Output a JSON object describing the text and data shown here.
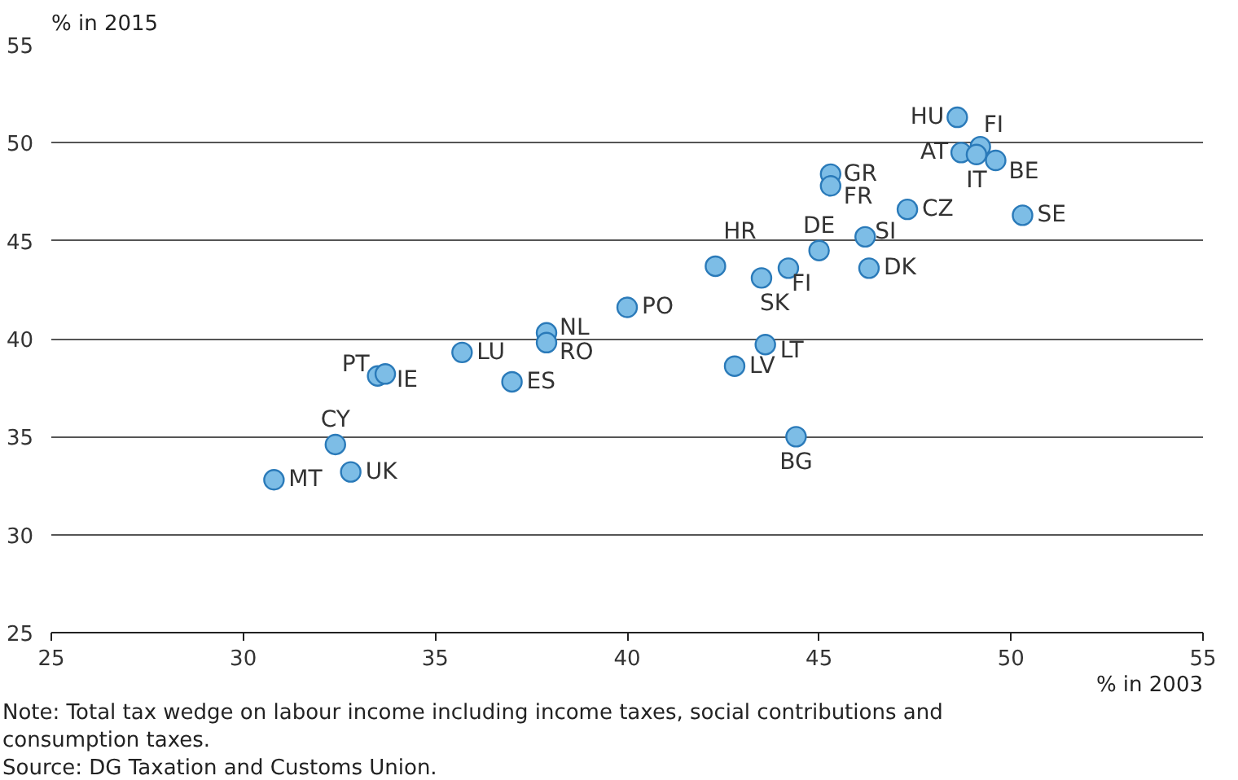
{
  "chart_data": {
    "type": "scatter",
    "xlabel": "% in 2003",
    "ylabel": "% in 2015",
    "x": [
      48.6,
      49.2,
      48.7,
      49.1,
      49.6,
      45.3,
      45.3,
      47.3,
      50.3,
      46.2,
      45.0,
      42.3,
      43.5,
      44.2,
      46.3,
      43.6,
      42.8,
      44.4,
      40.0,
      37.9,
      37.9,
      35.7,
      37.0,
      33.5,
      33.7,
      32.4,
      30.8,
      32.8
    ],
    "series": [
      {
        "color": "#7dbde6",
        "values": [
          51.3,
          49.8,
          49.5,
          49.4,
          49.1,
          48.4,
          47.8,
          46.6,
          46.3,
          45.2,
          44.5,
          43.7,
          43.1,
          43.6,
          43.6,
          39.7,
          38.6,
          35.0,
          41.6,
          40.3,
          39.8,
          39.3,
          37.8,
          38.1,
          38.2,
          34.6,
          32.8,
          33.2
        ]
      }
    ],
    "annotations": [
      {
        "text": "HU",
        "x": 48.6,
        "y": 51.3
      },
      {
        "text": "FI",
        "x": 49.2,
        "y": 49.8
      },
      {
        "text": "AT",
        "x": 48.7,
        "y": 49.5
      },
      {
        "text": "IT",
        "x": 49.1,
        "y": 49.4
      },
      {
        "text": "BE",
        "x": 49.6,
        "y": 49.1
      },
      {
        "text": "GR",
        "x": 45.3,
        "y": 48.4
      },
      {
        "text": "FR",
        "x": 45.3,
        "y": 47.8
      },
      {
        "text": "CZ",
        "x": 47.3,
        "y": 46.6
      },
      {
        "text": "SE",
        "x": 50.3,
        "y": 46.3
      },
      {
        "text": "SI",
        "x": 46.2,
        "y": 45.2
      },
      {
        "text": "DE",
        "x": 45.0,
        "y": 44.5
      },
      {
        "text": "HR",
        "x": 42.3,
        "y": 43.7
      },
      {
        "text": "SK",
        "x": 43.5,
        "y": 43.1
      },
      {
        "text": "FI",
        "x": 44.2,
        "y": 43.6
      },
      {
        "text": "DK",
        "x": 46.3,
        "y": 43.6
      },
      {
        "text": "LT",
        "x": 43.6,
        "y": 39.7
      },
      {
        "text": "LV",
        "x": 42.8,
        "y": 38.6
      },
      {
        "text": "BG",
        "x": 44.4,
        "y": 35.0
      },
      {
        "text": "PO",
        "x": 40.0,
        "y": 41.6
      },
      {
        "text": "NL",
        "x": 37.9,
        "y": 40.3
      },
      {
        "text": "RO",
        "x": 37.9,
        "y": 39.8
      },
      {
        "text": "LU",
        "x": 35.7,
        "y": 39.3
      },
      {
        "text": "ES",
        "x": 37.0,
        "y": 37.8
      },
      {
        "text": "PT",
        "x": 33.5,
        "y": 38.1
      },
      {
        "text": "IE",
        "x": 33.7,
        "y": 38.2
      },
      {
        "text": "CY",
        "x": 32.4,
        "y": 34.6
      },
      {
        "text": "MT",
        "x": 30.8,
        "y": 32.8
      },
      {
        "text": "UK",
        "x": 32.8,
        "y": 33.2
      },
      "Note: Total tax wedge on labour income including income taxes, social contributions and consumption taxes.",
      "Source: DG Taxation and Customs Union."
    ],
    "xlim": [
      25,
      55
    ],
    "xticks": [
      25,
      30,
      35,
      40,
      45,
      50,
      55
    ],
    "ylim": [
      25,
      55
    ],
    "yticks": [
      25,
      30,
      35,
      40,
      45,
      50,
      55
    ],
    "grid": "y",
    "marker": "circle"
  }
}
